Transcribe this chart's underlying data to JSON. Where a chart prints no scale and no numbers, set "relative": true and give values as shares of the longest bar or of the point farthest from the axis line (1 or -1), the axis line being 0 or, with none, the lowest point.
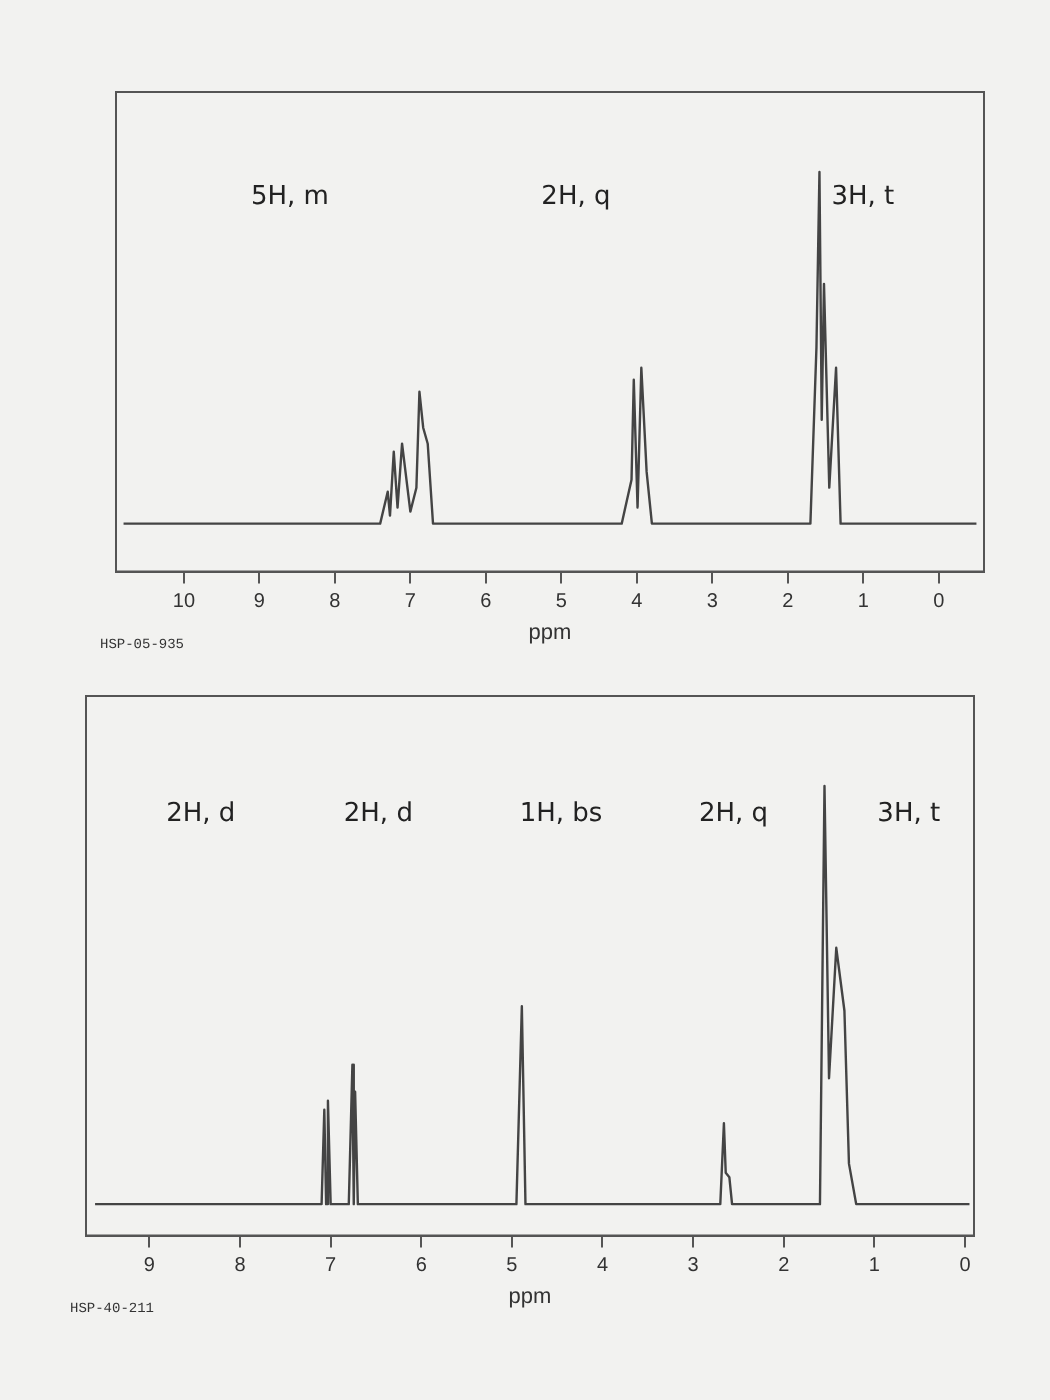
{
  "chart_data": [
    {
      "type": "line",
      "xlabel": "ppm",
      "relative": true,
      "grid": false,
      "legend": false,
      "marker": "none",
      "line_style": "solid",
      "tick_labels": "x",
      "xlim": [
        10.9,
        -0.6
      ],
      "xticks": [
        10,
        9,
        8,
        7,
        6,
        5,
        4,
        3,
        2,
        1,
        0
      ],
      "series": [
        {
          "color": "#444444",
          "x": [
            10.8,
            7.4,
            7.3,
            7.27,
            7.22,
            7.17,
            7.11,
            7.0,
            6.92,
            6.88,
            6.83,
            6.77,
            6.7,
            4.2,
            4.07,
            4.04,
            3.99,
            3.94,
            3.87,
            3.8,
            1.7,
            1.62,
            1.58,
            1.55,
            1.52,
            1.45,
            1.36,
            1.3,
            -0.5
          ],
          "values": [
            0.12,
            0.12,
            0.2,
            0.14,
            0.3,
            0.16,
            0.32,
            0.15,
            0.21,
            0.45,
            0.36,
            0.32,
            0.12,
            0.12,
            0.23,
            0.48,
            0.16,
            0.51,
            0.25,
            0.12,
            0.12,
            0.56,
            1.0,
            0.38,
            0.72,
            0.21,
            0.51,
            0.12,
            0.12
          ]
        }
      ],
      "annotations": [
        "5H, m",
        "2H, q",
        "3H, t",
        "HSP-05-935"
      ]
    },
    {
      "type": "line",
      "xlabel": "ppm",
      "relative": true,
      "grid": false,
      "legend": false,
      "marker": "none",
      "line_style": "solid",
      "tick_labels": "x",
      "xlim": [
        9.7,
        -0.1
      ],
      "xticks": [
        9,
        8,
        7,
        6,
        5,
        4,
        3,
        2,
        1,
        0
      ],
      "series": [
        {
          "color": "#444444",
          "x": [
            9.6,
            7.1,
            7.07,
            7.05,
            7.03,
            7.0,
            6.8,
            6.76,
            6.745,
            6.73,
            6.7,
            4.95,
            4.89,
            4.85,
            2.7,
            2.66,
            2.64,
            2.6,
            2.57,
            1.6,
            1.55,
            1.5,
            1.42,
            1.33,
            1.28,
            1.2,
            -0.05
          ],
          "values": [
            0.07,
            0.07,
            0.28,
            0.07,
            0.3,
            0.07,
            0.07,
            0.38,
            0.07,
            0.32,
            0.07,
            0.07,
            0.51,
            0.07,
            0.07,
            0.25,
            0.14,
            0.13,
            0.07,
            0.07,
            1.0,
            0.35,
            0.64,
            0.5,
            0.16,
            0.07,
            0.07
          ]
        }
      ],
      "annotations": [
        "2H, d",
        "2H, d",
        "1H, bs",
        "2H, q",
        "3H, t",
        "HSP-40-211"
      ]
    }
  ]
}
